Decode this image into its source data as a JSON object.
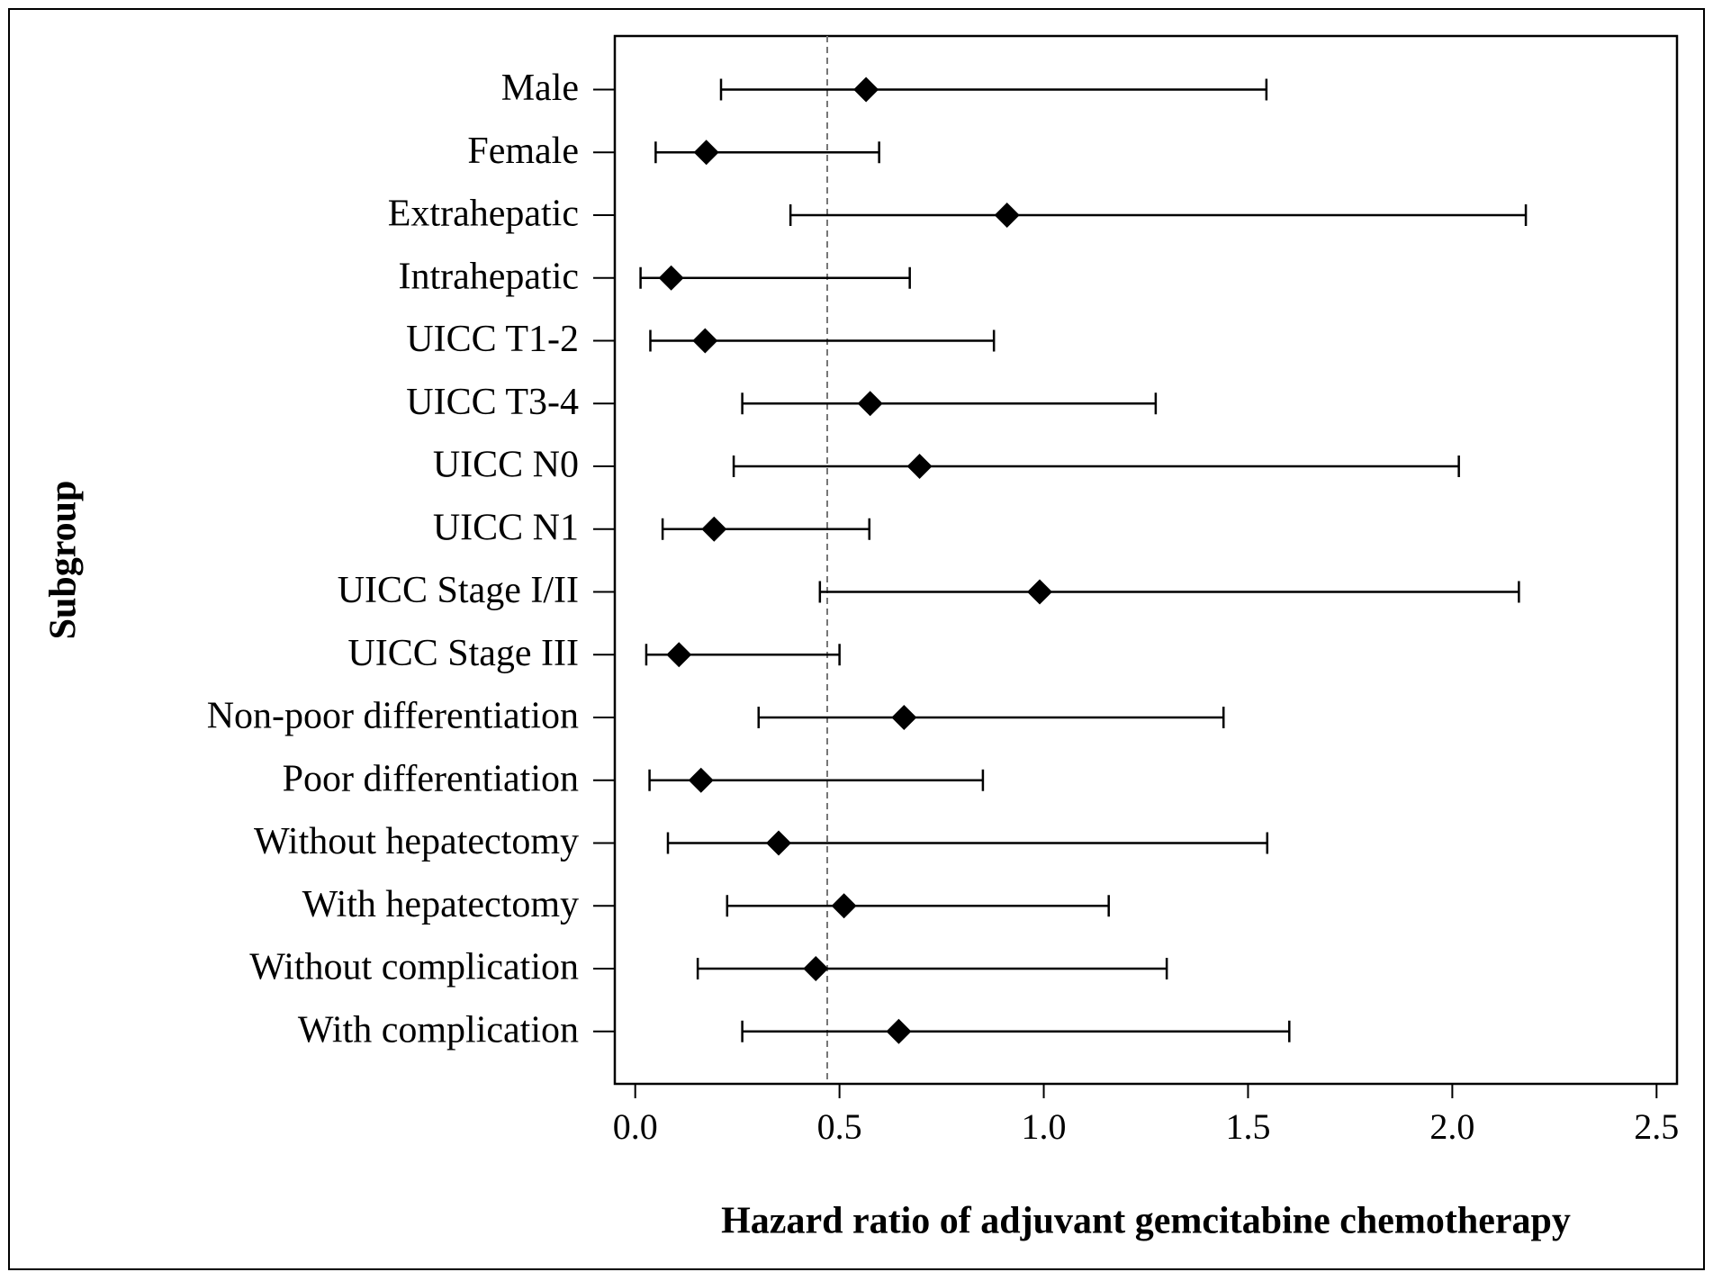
{
  "chart_data": {
    "type": "forest",
    "y_label": "Subgroup",
    "x_label": "Hazard ratio of adjuvant gemcitabine chemotherapy",
    "categories": [
      "Male",
      "Female",
      "Extrahepatic",
      "Intrahepatic",
      "UICC T1-2",
      "UICC T3-4",
      "UICC N0",
      "UICC N1",
      "UICC Stage I/II",
      "UICC Stage III",
      "Non-poor differentiation",
      "Poor differentiation",
      "Without hepatectomy",
      "With hepatectomy",
      "Without complication",
      "With complication"
    ],
    "values": [
      0.565,
      0.174,
      0.91,
      0.088,
      0.171,
      0.575,
      0.696,
      0.193,
      0.99,
      0.107,
      0.658,
      0.161,
      0.351,
      0.511,
      0.442,
      0.645
    ],
    "lower": [
      0.21,
      0.05,
      0.38,
      0.013,
      0.037,
      0.262,
      0.241,
      0.067,
      0.452,
      0.027,
      0.302,
      0.035,
      0.08,
      0.225,
      0.153,
      0.262
    ],
    "upper": [
      1.545,
      0.597,
      2.18,
      0.672,
      0.878,
      1.274,
      2.016,
      0.573,
      2.163,
      0.5,
      1.44,
      0.851,
      1.547,
      1.159,
      1.301,
      1.601
    ],
    "color": "#000000",
    "reference_line": 0.47,
    "xlim": [
      -0.05,
      2.55
    ],
    "xticks": [
      {
        "value": 0,
        "label": "0.0"
      },
      0.5,
      {
        "value": 1,
        "label": "1.0"
      },
      1.5,
      {
        "value": 2,
        "label": "2.0"
      },
      2.5
    ]
  }
}
